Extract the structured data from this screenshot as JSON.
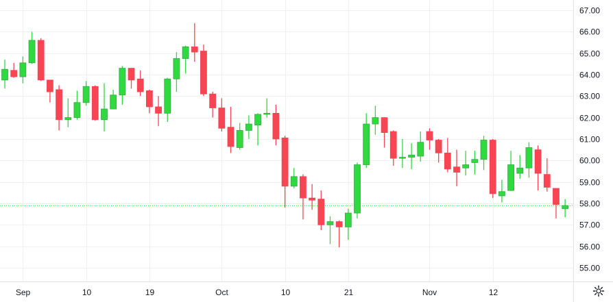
{
  "chart_data": {
    "type": "candlestick",
    "title": "",
    "xlabel": "",
    "ylabel": "",
    "ylim": [
      54.55,
      67.5
    ],
    "y_ticks": [
      "67.00",
      "66.00",
      "65.00",
      "64.00",
      "63.00",
      "62.00",
      "61.00",
      "60.00",
      "59.00",
      "58.00",
      "57.00",
      "56.00",
      "55.00"
    ],
    "x_ticks": [
      {
        "label": "Sep",
        "index": 2
      },
      {
        "label": "10",
        "index": 9
      },
      {
        "label": "19",
        "index": 16
      },
      {
        "label": "Oct",
        "index": 24
      },
      {
        "label": "10",
        "index": 31
      },
      {
        "label": "21",
        "index": 38
      },
      {
        "label": "Nov",
        "index": 47
      },
      {
        "label": "12",
        "index": 54
      }
    ],
    "last_price": 57.9,
    "grid": true,
    "colors": {
      "up": "#2fd93f",
      "up_border": "#3aa847",
      "down": "#f74553",
      "grid": "#f0f0f0",
      "last_line": "#2fd93f"
    },
    "ohlc": [
      [
        63.75,
        64.7,
        63.35,
        64.25
      ],
      [
        64.2,
        64.55,
        63.85,
        63.9
      ],
      [
        63.9,
        64.85,
        63.6,
        64.55
      ],
      [
        64.55,
        66.0,
        64.5,
        65.6
      ],
      [
        65.6,
        65.7,
        63.7,
        63.75
      ],
      [
        63.75,
        63.75,
        62.7,
        63.2
      ],
      [
        63.3,
        63.5,
        61.4,
        61.9
      ],
      [
        61.9,
        62.9,
        61.55,
        62.0
      ],
      [
        62.0,
        63.25,
        61.9,
        62.7
      ],
      [
        62.7,
        63.7,
        62.55,
        63.45
      ],
      [
        63.45,
        63.5,
        61.85,
        61.9
      ],
      [
        61.9,
        63.6,
        61.35,
        62.4
      ],
      [
        62.4,
        63.3,
        62.4,
        63.05
      ],
      [
        63.05,
        64.4,
        62.6,
        64.3
      ],
      [
        64.3,
        64.3,
        63.35,
        63.75
      ],
      [
        63.8,
        64.2,
        63.0,
        63.2
      ],
      [
        63.25,
        63.3,
        62.2,
        62.5
      ],
      [
        62.5,
        63.0,
        61.6,
        62.2
      ],
      [
        62.2,
        63.85,
        61.8,
        63.8
      ],
      [
        63.8,
        65.05,
        63.2,
        64.75
      ],
      [
        64.75,
        65.35,
        64.05,
        65.3
      ],
      [
        65.3,
        66.4,
        64.6,
        65.05
      ],
      [
        65.1,
        65.4,
        63.0,
        63.1
      ],
      [
        63.1,
        63.2,
        62.0,
        62.45
      ],
      [
        62.45,
        62.9,
        61.35,
        61.5
      ],
      [
        61.55,
        62.5,
        60.35,
        60.65
      ],
      [
        60.6,
        61.75,
        60.5,
        61.4
      ],
      [
        61.4,
        62.1,
        61.0,
        61.7
      ],
      [
        61.65,
        62.2,
        60.7,
        62.15
      ],
      [
        62.15,
        62.9,
        62.0,
        62.2
      ],
      [
        62.2,
        62.6,
        60.7,
        61.0
      ],
      [
        61.05,
        61.15,
        57.8,
        58.8
      ],
      [
        58.8,
        59.65,
        58.7,
        59.25
      ],
      [
        59.25,
        59.35,
        57.25,
        58.25
      ],
      [
        58.25,
        58.9,
        57.7,
        58.15
      ],
      [
        58.2,
        58.6,
        56.75,
        57.0
      ],
      [
        57.0,
        57.4,
        56.1,
        57.15
      ],
      [
        57.15,
        57.2,
        55.95,
        56.9
      ],
      [
        56.9,
        57.75,
        56.3,
        57.55
      ],
      [
        57.55,
        59.9,
        57.3,
        59.8
      ],
      [
        59.8,
        62.2,
        59.65,
        61.7
      ],
      [
        61.7,
        62.55,
        61.2,
        62.0
      ],
      [
        62.0,
        62.0,
        60.6,
        61.3
      ],
      [
        61.35,
        61.4,
        59.75,
        60.1
      ],
      [
        60.1,
        61.0,
        59.65,
        60.15
      ],
      [
        60.15,
        60.8,
        59.6,
        60.25
      ],
      [
        60.2,
        61.35,
        59.95,
        60.85
      ],
      [
        61.35,
        61.5,
        60.5,
        60.95
      ],
      [
        60.95,
        61.0,
        59.9,
        60.35
      ],
      [
        60.35,
        61.05,
        59.45,
        59.6
      ],
      [
        59.7,
        60.5,
        58.8,
        59.45
      ],
      [
        59.65,
        60.45,
        59.3,
        59.8
      ],
      [
        59.9,
        60.45,
        59.35,
        60.05
      ],
      [
        60.05,
        61.15,
        59.55,
        60.95
      ],
      [
        60.95,
        61.0,
        58.25,
        58.45
      ],
      [
        58.35,
        59.1,
        58.05,
        58.55
      ],
      [
        58.6,
        60.45,
        58.6,
        59.8
      ],
      [
        59.4,
        60.25,
        59.15,
        59.65
      ],
      [
        59.65,
        60.85,
        59.2,
        60.6
      ],
      [
        60.5,
        60.7,
        58.6,
        59.4
      ],
      [
        59.35,
        60.1,
        58.55,
        58.75
      ],
      [
        58.7,
        58.7,
        57.3,
        57.95
      ],
      [
        57.75,
        58.2,
        57.35,
        57.9
      ]
    ]
  },
  "settings_icon": "gear-icon"
}
